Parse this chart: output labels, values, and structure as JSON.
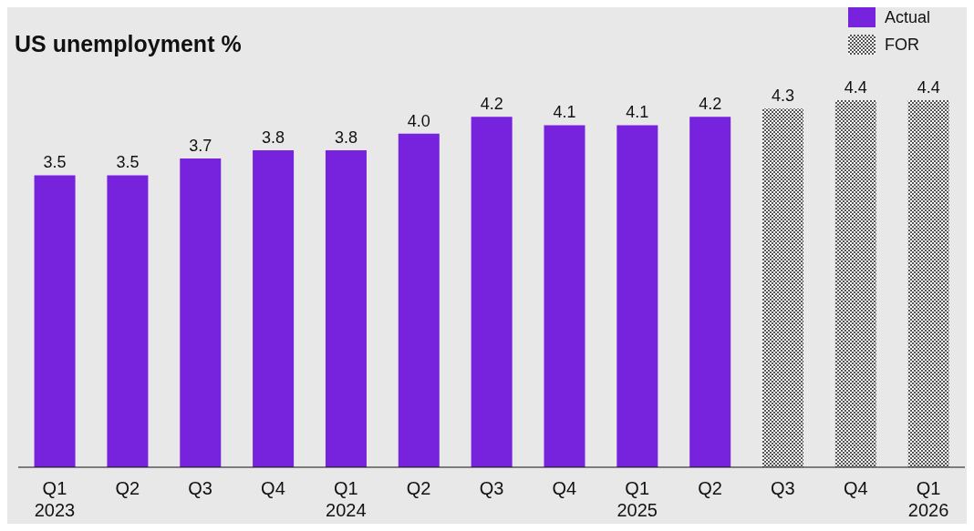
{
  "chart_data": {
    "type": "bar",
    "title": "US unemployment %",
    "categories": [
      "Q1\n2023",
      "Q2",
      "Q3",
      "Q4",
      "Q1\n2024",
      "Q2",
      "Q3",
      "Q4",
      "Q1\n2025",
      "Q2",
      "Q3",
      "Q4",
      "Q1\n2026"
    ],
    "series": [
      {
        "name": "Actual",
        "color": "#7722dd",
        "values": [
          3.5,
          3.5,
          3.7,
          3.8,
          3.8,
          4.0,
          4.2,
          4.1,
          4.1,
          4.2,
          null,
          null,
          null
        ],
        "value_labels": [
          "3.5",
          "3.5",
          "3.7",
          "3.8",
          "3.8",
          "4.0",
          "4.2",
          "4.1",
          "4.1",
          "4.2",
          null,
          null,
          null
        ]
      },
      {
        "name": "FOR",
        "color": "#555555",
        "values": [
          null,
          null,
          null,
          null,
          null,
          null,
          null,
          null,
          null,
          null,
          4.3,
          4.4,
          4.4
        ],
        "value_labels": [
          null,
          null,
          null,
          null,
          null,
          null,
          null,
          null,
          null,
          null,
          "4.3",
          "4.4",
          "4.4"
        ]
      }
    ],
    "legend": "top right"
  }
}
